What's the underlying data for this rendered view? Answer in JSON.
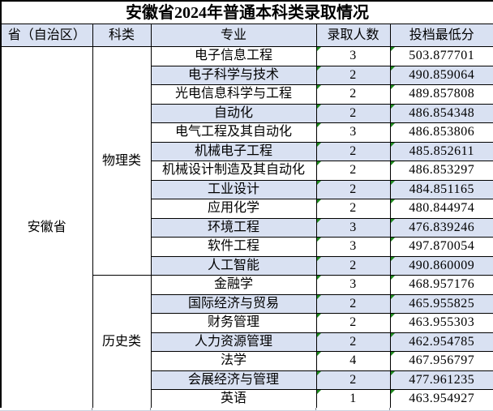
{
  "page": {
    "title": "安徽省2024年普通本科类录取情况"
  },
  "table": {
    "header": {
      "province": "省（自治区）",
      "category": "科类",
      "major": "专业",
      "count": "录取人数",
      "score": "投档最低分"
    },
    "province": "安徽省",
    "category_physics": "物理类",
    "category_physics_rows": 12,
    "category_history": "历史类",
    "category_history_rows": 7,
    "rows": [
      {
        "major": "电子信息工程",
        "count": "3",
        "score": "503.877701"
      },
      {
        "major": "电子科学与技术",
        "count": "2",
        "score": "490.859064"
      },
      {
        "major": "光电信息科学与工程",
        "count": "2",
        "score": "489.857808"
      },
      {
        "major": "自动化",
        "count": "2",
        "score": "486.854348"
      },
      {
        "major": "电气工程及其自动化",
        "count": "3",
        "score": "486.853806"
      },
      {
        "major": "机械电子工程",
        "count": "2",
        "score": "485.852611"
      },
      {
        "major": "机械设计制造及其自动化",
        "count": "2",
        "score": "486.853297"
      },
      {
        "major": "工业设计",
        "count": "2",
        "score": "484.851165"
      },
      {
        "major": "应用化学",
        "count": "2",
        "score": "480.844974"
      },
      {
        "major": "环境工程",
        "count": "3",
        "score": "476.839246"
      },
      {
        "major": "软件工程",
        "count": "3",
        "score": "497.870054"
      },
      {
        "major": "人工智能",
        "count": "2",
        "score": "490.860009"
      },
      {
        "major": "金融学",
        "count": "3",
        "score": "468.957176"
      },
      {
        "major": "国际经济与贸易",
        "count": "2",
        "score": "465.955825"
      },
      {
        "major": "财务管理",
        "count": "2",
        "score": "463.955303"
      },
      {
        "major": "人力资源管理",
        "count": "2",
        "score": "462.954785"
      },
      {
        "major": "法学",
        "count": "4",
        "score": "467.956797"
      },
      {
        "major": "会展经济与管理",
        "count": "2",
        "score": "477.961235"
      },
      {
        "major": "英语",
        "count": "1",
        "score": "463.954927"
      }
    ]
  },
  "colors": {
    "stripe": "#D9E1F2",
    "headerBg": "#D9E1F2",
    "triangle": "#1E8A1E",
    "border": "#000000",
    "gridline": "#CCD3E0"
  }
}
